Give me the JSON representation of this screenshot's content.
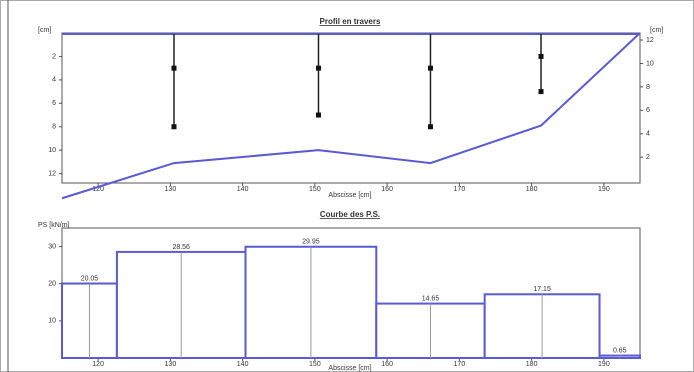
{
  "chart_data": [
    {
      "type": "line",
      "title": "Profil en travers",
      "x_label": "Abscisse [cm]",
      "y_label": "[cm]",
      "y2_label": "[cm]",
      "xlim": [
        115,
        195
      ],
      "xticks": [
        120,
        130,
        140,
        150,
        160,
        170,
        180,
        190
      ],
      "ylim": [
        0,
        12.8
      ],
      "y_inverted": true,
      "yticks": [
        2,
        4,
        6,
        8,
        10,
        12
      ],
      "y2lim": [
        -0.2,
        12.6
      ],
      "y2ticks": [
        2,
        4,
        6,
        8,
        10,
        12
      ],
      "color": "#5a5ad2",
      "x": [
        115,
        130.5,
        150.5,
        166,
        181.3,
        195
      ],
      "values": [
        14.1,
        11.1,
        10,
        11.1,
        7.9,
        0
      ],
      "points": {
        "x": [
          130.5,
          130.5,
          150.5,
          150.5,
          166,
          166,
          181.3,
          181.3
        ],
        "values": [
          3,
          8,
          3,
          7,
          3,
          8,
          2,
          5
        ],
        "color": "#111111"
      }
    },
    {
      "type": "histogram",
      "title": "Courbe des P.S.",
      "x_label": "Abscisse [cm]",
      "y_label": "PS [kN/m]",
      "xlim": [
        115,
        195
      ],
      "xticks": [
        120,
        130,
        140,
        150,
        160,
        170,
        180,
        190
      ],
      "ylim": [
        0,
        35
      ],
      "yticks": [
        10,
        20,
        30
      ],
      "color": "#5a5ad2",
      "bins": [
        115,
        122.6,
        140.4,
        158.5,
        173.5,
        189.4,
        195
      ],
      "values": [
        20.05,
        28.56,
        29.95,
        14.65,
        17.15,
        0.65
      ]
    }
  ]
}
